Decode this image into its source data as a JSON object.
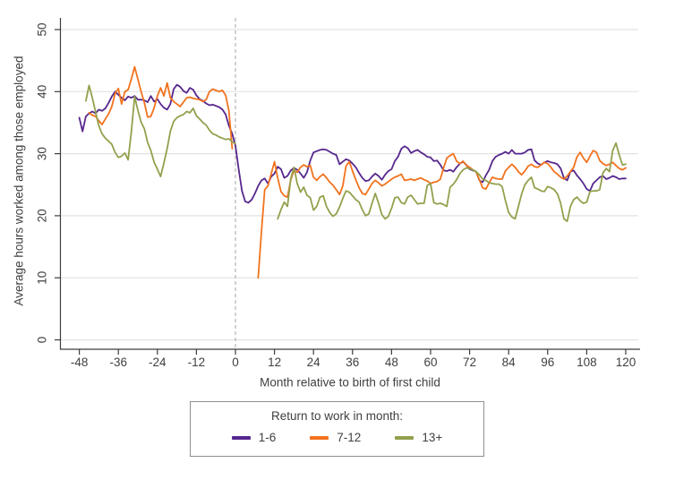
{
  "colors": {
    "background": "#ffffff",
    "grid": "#e2e2e2",
    "axis": "#3c3c3c",
    "text": "#404040",
    "dashed_reference": "#b4b4b4",
    "legend_border": "#8f8f8f"
  },
  "chart_data": {
    "type": "line",
    "title": "",
    "xlabel": "Month relative to birth of first child",
    "ylabel": "Average hours worked among those employed",
    "xlim": [
      -54,
      124
    ],
    "ylim": [
      0,
      51.8
    ],
    "xticks": [
      -48,
      -36,
      -24,
      -12,
      0,
      12,
      24,
      36,
      48,
      60,
      72,
      84,
      96,
      108,
      120
    ],
    "yticks": [
      0,
      10,
      20,
      30,
      40,
      50
    ],
    "grid": "horizontal",
    "reference_line": {
      "x": 0,
      "style": "dashed"
    },
    "legend": {
      "title": "Return to work in month:",
      "position": "bottom",
      "border": true
    },
    "x_start": -48,
    "x_step": 1,
    "series": [
      {
        "name": "1-6",
        "color": "#56278d",
        "values": [
          35.8,
          33.6,
          36.0,
          36.5,
          36.8,
          36.5,
          37.1,
          36.9,
          37.3,
          38.2,
          39.2,
          40.0,
          39.5,
          39.0,
          38.6,
          39.2,
          39.0,
          39.3,
          38.7,
          38.7,
          38.6,
          38.3,
          39.3,
          38.4,
          38.8,
          38.0,
          37.4,
          37.1,
          38.0,
          40.4,
          41.1,
          40.8,
          40.1,
          39.8,
          40.6,
          40.3,
          39.4,
          38.8,
          38.5,
          38.1,
          37.8,
          37.9,
          37.7,
          37.5,
          37.1,
          36.3,
          34.5,
          33.2,
          31.3,
          27.5,
          24.0,
          22.3,
          22.1,
          22.6,
          23.6,
          24.8,
          25.7,
          26.0,
          25.2,
          26.3,
          26.8,
          27.9,
          27.5,
          26.1,
          26.4,
          27.3,
          27.7,
          27.4,
          26.8,
          26.1,
          27.0,
          28.9,
          30.2,
          30.4,
          30.6,
          30.7,
          30.6,
          30.3,
          30.0,
          29.8,
          28.3,
          28.7,
          29.1,
          28.9,
          28.4,
          27.8,
          26.9,
          26.1,
          25.6,
          25.7,
          26.3,
          26.8,
          26.4,
          25.8,
          26.6,
          27.2,
          27.5,
          28.8,
          29.5,
          30.8,
          31.2,
          30.9,
          30.1,
          30.4,
          30.6,
          30.2,
          29.9,
          29.5,
          29.4,
          28.8,
          28.9,
          28.2,
          27.3,
          27.2,
          27.4,
          27.1,
          27.8,
          28.4,
          28.7,
          28.2,
          27.5,
          27.3,
          27.1,
          25.7,
          25.4,
          26.5,
          27.4,
          28.8,
          29.5,
          29.8,
          30.0,
          30.3,
          30.0,
          30.6,
          30.0,
          30.0,
          30.0,
          30.2,
          30.6,
          30.7,
          28.9,
          28.4,
          28.2,
          28.6,
          28.8,
          28.6,
          28.5,
          28.3,
          27.6,
          26.1,
          25.7,
          27.1,
          27.3,
          26.5,
          25.9,
          25.2,
          24.3,
          24.0,
          25.2,
          25.7,
          26.2,
          26.4,
          25.9,
          26.1,
          26.4,
          26.2,
          25.9,
          26.0,
          26.0
        ]
      },
      {
        "name": "7-12",
        "color": "#f2731d",
        "values": [
          null,
          null,
          null,
          36.6,
          36.2,
          36.0,
          35.3,
          34.7,
          35.6,
          36.4,
          37.6,
          39.7,
          40.5,
          38.0,
          40.0,
          40.3,
          42.0,
          44.0,
          42.0,
          40.0,
          38.2,
          35.9,
          36.0,
          37.4,
          39.3,
          40.6,
          39.3,
          41.4,
          39.0,
          38.4,
          38.0,
          37.6,
          38.3,
          39.0,
          39.1,
          38.9,
          38.8,
          38.7,
          38.4,
          38.7,
          40.0,
          40.4,
          40.2,
          40.0,
          40.2,
          39.4,
          36.9,
          30.8,
          null,
          null,
          null,
          null,
          null,
          null,
          null,
          10.0,
          17.5,
          24.2,
          24.8,
          26.8,
          28.7,
          26.1,
          23.9,
          23.2,
          23.0,
          25.8,
          27.3,
          27.0,
          27.8,
          28.2,
          27.9,
          28.1,
          26.2,
          25.7,
          26.3,
          26.7,
          26.1,
          25.4,
          24.9,
          24.2,
          23.4,
          24.8,
          28.0,
          28.7,
          27.2,
          25.8,
          24.5,
          23.6,
          23.4,
          24.3,
          25.2,
          25.7,
          25.3,
          24.8,
          25.1,
          25.5,
          25.9,
          26.2,
          26.4,
          26.7,
          25.7,
          25.8,
          25.9,
          25.7,
          25.9,
          26.1,
          25.8,
          25.6,
          25.2,
          25.4,
          25.5,
          25.9,
          27.7,
          29.3,
          29.7,
          30.0,
          28.8,
          28.4,
          28.8,
          28.1,
          27.8,
          27.4,
          27.1,
          25.8,
          24.5,
          24.3,
          25.3,
          26.2,
          26.0,
          25.9,
          25.9,
          27.2,
          27.8,
          28.3,
          27.8,
          27.1,
          26.6,
          27.2,
          28.0,
          28.3,
          27.9,
          27.8,
          28.2,
          28.6,
          28.4,
          27.8,
          27.1,
          26.7,
          26.2,
          25.9,
          26.4,
          27.1,
          27.8,
          29.5,
          30.2,
          29.3,
          28.6,
          29.6,
          30.5,
          30.2,
          28.9,
          28.4,
          28.1,
          28.3,
          28.6,
          28.1,
          27.6,
          27.4,
          27.7
        ]
      },
      {
        "name": "13+",
        "color": "#93a04c",
        "values": [
          null,
          null,
          38.5,
          41.0,
          39.0,
          36.7,
          34.5,
          33.2,
          32.5,
          32.0,
          31.5,
          30.2,
          29.4,
          29.6,
          30.1,
          29.0,
          33.5,
          39.2,
          37.0,
          35.1,
          34.0,
          31.8,
          30.5,
          28.6,
          27.5,
          26.3,
          28.5,
          30.8,
          33.6,
          35.2,
          35.8,
          36.1,
          36.3,
          36.8,
          36.6,
          37.3,
          36.1,
          35.6,
          35.0,
          34.6,
          33.8,
          33.2,
          33.0,
          32.7,
          32.5,
          32.3,
          32.4,
          31.9,
          31.6,
          null,
          null,
          null,
          null,
          null,
          null,
          null,
          null,
          null,
          null,
          null,
          null,
          19.5,
          21.0,
          22.2,
          21.5,
          26.0,
          27.8,
          25.2,
          23.8,
          24.6,
          23.3,
          22.9,
          20.9,
          21.5,
          23.0,
          23.2,
          21.5,
          20.5,
          19.9,
          20.3,
          21.4,
          22.8,
          24.0,
          23.8,
          23.2,
          22.6,
          22.2,
          21.0,
          20.0,
          20.3,
          22.0,
          23.6,
          22.0,
          20.2,
          19.5,
          19.9,
          21.2,
          22.9,
          23.0,
          22.1,
          21.9,
          23.0,
          23.3,
          22.6,
          21.9,
          22.0,
          22.0,
          24.9,
          25.2,
          22.1,
          21.9,
          22.0,
          21.8,
          21.5,
          24.6,
          25.1,
          25.8,
          26.8,
          27.4,
          27.7,
          27.6,
          27.4,
          27.1,
          26.6,
          25.9,
          25.7,
          25.3,
          25.2,
          25.1,
          25.1,
          24.7,
          22.5,
          20.5,
          19.8,
          19.5,
          21.5,
          23.5,
          25.0,
          25.7,
          26.2,
          24.5,
          24.3,
          24.0,
          23.9,
          24.7,
          24.5,
          24.2,
          23.5,
          22.0,
          19.5,
          19.1,
          21.5,
          22.6,
          23.0,
          22.4,
          22.0,
          22.2,
          23.9,
          24.0,
          24.0,
          24.2,
          26.9,
          27.6,
          27.1,
          30.5,
          31.7,
          29.8,
          28.2,
          28.3
        ]
      }
    ]
  }
}
